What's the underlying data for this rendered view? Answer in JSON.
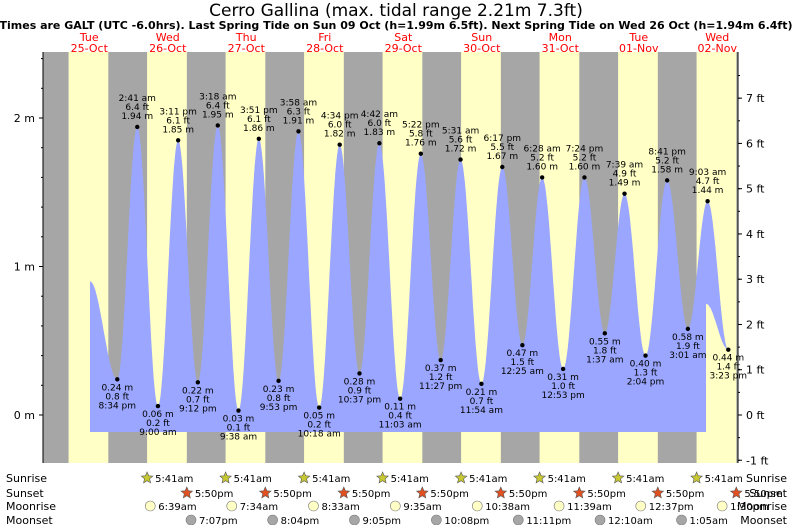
{
  "chart_data": {
    "type": "area",
    "title": "Cerro Gallina (max. tidal range 2.21m 7.3ft)",
    "subtitle": "Times are GALT (UTC -6.0hrs). Last Spring Tide on Sun 09 Oct (h=1.99m 6.5ft). Next Spring Tide on Wed 26 Oct (h=1.94m 6.4ft)",
    "days": [
      {
        "dow": "Tue",
        "date": "25-Oct"
      },
      {
        "dow": "Wed",
        "date": "26-Oct"
      },
      {
        "dow": "Thu",
        "date": "27-Oct"
      },
      {
        "dow": "Fri",
        "date": "28-Oct"
      },
      {
        "dow": "Sat",
        "date": "29-Oct"
      },
      {
        "dow": "Sun",
        "date": "30-Oct"
      },
      {
        "dow": "Mon",
        "date": "31-Oct"
      },
      {
        "dow": "Tue",
        "date": "01-Nov"
      },
      {
        "dow": "Wed",
        "date": "02-Nov"
      }
    ],
    "y_left_ticks": [
      "0 m",
      "1 m",
      "2 m"
    ],
    "y_right_ticks": [
      "-1 ft",
      "0 ft",
      "1 ft",
      "2 ft",
      "3 ft",
      "4 ft",
      "5 ft",
      "6 ft",
      "7 ft"
    ],
    "ylim_m": [
      -0.3,
      2.6
    ],
    "tides": [
      {
        "day": 0,
        "hour": 20.57,
        "m": 0.24,
        "ft": 0.8,
        "label_m": "0.24 m",
        "label_ft": "0.8 ft",
        "time": "8:34 pm",
        "type": "low"
      },
      {
        "day": 1,
        "hour": 2.68,
        "m": 1.94,
        "ft": 6.4,
        "label_m": "1.94 m",
        "label_ft": "6.4 ft",
        "time": "2:41 am",
        "type": "high"
      },
      {
        "day": 1,
        "hour": 9.0,
        "m": 0.06,
        "ft": 0.2,
        "label_m": "0.06 m",
        "label_ft": "0.2 ft",
        "time": "9:00 am",
        "type": "low"
      },
      {
        "day": 1,
        "hour": 15.18,
        "m": 1.85,
        "ft": 6.1,
        "label_m": "1.85 m",
        "label_ft": "6.1 ft",
        "time": "3:11 pm",
        "type": "high"
      },
      {
        "day": 1,
        "hour": 21.2,
        "m": 0.22,
        "ft": 0.7,
        "label_m": "0.22 m",
        "label_ft": "0.7 ft",
        "time": "9:12 pm",
        "type": "low"
      },
      {
        "day": 2,
        "hour": 3.3,
        "m": 1.95,
        "ft": 6.4,
        "label_m": "1.95 m",
        "label_ft": "6.4 ft",
        "time": "3:18 am",
        "type": "high"
      },
      {
        "day": 2,
        "hour": 9.63,
        "m": 0.03,
        "ft": 0.1,
        "label_m": "0.03 m",
        "label_ft": "0.1 ft",
        "time": "9:38 am",
        "type": "low"
      },
      {
        "day": 2,
        "hour": 15.85,
        "m": 1.86,
        "ft": 6.1,
        "label_m": "1.86 m",
        "label_ft": "6.1 ft",
        "time": "3:51 pm",
        "type": "high"
      },
      {
        "day": 2,
        "hour": 21.88,
        "m": 0.23,
        "ft": 0.8,
        "label_m": "0.23 m",
        "label_ft": "0.8 ft",
        "time": "9:53 pm",
        "type": "low"
      },
      {
        "day": 3,
        "hour": 3.97,
        "m": 1.91,
        "ft": 6.3,
        "label_m": "1.91 m",
        "label_ft": "6.3 ft",
        "time": "3:58 am",
        "type": "high"
      },
      {
        "day": 3,
        "hour": 10.3,
        "m": 0.05,
        "ft": 0.2,
        "label_m": "0.05 m",
        "label_ft": "0.2 ft",
        "time": "10:18 am",
        "type": "low"
      },
      {
        "day": 3,
        "hour": 16.57,
        "m": 1.82,
        "ft": 6.0,
        "label_m": "1.82 m",
        "label_ft": "6.0 ft",
        "time": "4:34 pm",
        "type": "high"
      },
      {
        "day": 3,
        "hour": 22.62,
        "m": 0.28,
        "ft": 0.9,
        "label_m": "0.28 m",
        "label_ft": "0.9 ft",
        "time": "10:37 pm",
        "type": "low"
      },
      {
        "day": 4,
        "hour": 4.7,
        "m": 1.83,
        "ft": 6.0,
        "label_m": "1.83 m",
        "label_ft": "6.0 ft",
        "time": "4:42 am",
        "type": "high"
      },
      {
        "day": 4,
        "hour": 11.05,
        "m": 0.11,
        "ft": 0.4,
        "label_m": "0.11 m",
        "label_ft": "0.4 ft",
        "time": "11:03 am",
        "type": "low"
      },
      {
        "day": 4,
        "hour": 17.37,
        "m": 1.76,
        "ft": 5.8,
        "label_m": "1.76 m",
        "label_ft": "5.8 ft",
        "time": "5:22 pm",
        "type": "high"
      },
      {
        "day": 4,
        "hour": 23.45,
        "m": 0.37,
        "ft": 1.2,
        "label_m": "0.37 m",
        "label_ft": "1.2 ft",
        "time": "11:27 pm",
        "type": "low"
      },
      {
        "day": 5,
        "hour": 5.52,
        "m": 1.72,
        "ft": 5.6,
        "label_m": "1.72 m",
        "label_ft": "5.6 ft",
        "time": "5:31 am",
        "type": "high"
      },
      {
        "day": 5,
        "hour": 11.9,
        "m": 0.21,
        "ft": 0.7,
        "label_m": "0.21 m",
        "label_ft": "0.7 ft",
        "time": "11:54 am",
        "type": "low"
      },
      {
        "day": 5,
        "hour": 18.28,
        "m": 1.67,
        "ft": 5.5,
        "label_m": "1.67 m",
        "label_ft": "5.5 ft",
        "time": "6:17 pm",
        "type": "high"
      },
      {
        "day": 6,
        "hour": 0.42,
        "m": 0.47,
        "ft": 1.5,
        "label_m": "0.47 m",
        "label_ft": "1.5 ft",
        "time": "12:25 am",
        "type": "low"
      },
      {
        "day": 6,
        "hour": 6.47,
        "m": 1.6,
        "ft": 5.2,
        "label_m": "1.60 m",
        "label_ft": "5.2 ft",
        "time": "6:28 am",
        "type": "high"
      },
      {
        "day": 6,
        "hour": 12.88,
        "m": 0.31,
        "ft": 1.0,
        "label_m": "0.31 m",
        "label_ft": "1.0 ft",
        "time": "12:53 pm",
        "type": "low"
      },
      {
        "day": 6,
        "hour": 19.4,
        "m": 1.6,
        "ft": 5.2,
        "label_m": "1.60 m",
        "label_ft": "5.2 ft",
        "time": "7:24 pm",
        "type": "high"
      },
      {
        "day": 7,
        "hour": 1.62,
        "m": 0.55,
        "ft": 1.8,
        "label_m": "0.55 m",
        "label_ft": "1.8 ft",
        "time": "1:37 am",
        "type": "low"
      },
      {
        "day": 7,
        "hour": 7.65,
        "m": 1.49,
        "ft": 4.9,
        "label_m": "1.49 m",
        "label_ft": "4.9 ft",
        "time": "7:39 am",
        "type": "high"
      },
      {
        "day": 7,
        "hour": 14.07,
        "m": 0.4,
        "ft": 1.3,
        "label_m": "0.40 m",
        "label_ft": "1.3 ft",
        "time": "2:04 pm",
        "type": "low"
      },
      {
        "day": 7,
        "hour": 20.68,
        "m": 1.58,
        "ft": 5.2,
        "label_m": "1.58 m",
        "label_ft": "5.2 ft",
        "time": "8:41 pm",
        "type": "high"
      },
      {
        "day": 8,
        "hour": 3.02,
        "m": 0.58,
        "ft": 1.9,
        "label_m": "0.58 m",
        "label_ft": "1.9 ft",
        "time": "3:01 am",
        "type": "low"
      },
      {
        "day": 8,
        "hour": 9.05,
        "m": 1.44,
        "ft": 4.7,
        "label_m": "1.44 m",
        "label_ft": "4.7 ft",
        "time": "9:03 am",
        "type": "high"
      },
      {
        "day": 8,
        "hour": 15.38,
        "m": 0.44,
        "ft": 1.4,
        "label_m": "0.44 m",
        "label_ft": "1.4 ft",
        "time": "3:23 pm",
        "type": "low"
      }
    ],
    "astro_rows": {
      "sunrise": {
        "label": "Sunrise",
        "events": [
          {
            "day": 1,
            "hour": 5.68,
            "time": "5:41am"
          },
          {
            "day": 2,
            "hour": 5.68,
            "time": "5:41am"
          },
          {
            "day": 3,
            "hour": 5.68,
            "time": "5:41am"
          },
          {
            "day": 4,
            "hour": 5.68,
            "time": "5:41am"
          },
          {
            "day": 5,
            "hour": 5.68,
            "time": "5:41am"
          },
          {
            "day": 6,
            "hour": 5.68,
            "time": "5:41am"
          },
          {
            "day": 7,
            "hour": 5.68,
            "time": "5:41am"
          },
          {
            "day": 8,
            "hour": 5.68,
            "time": "5:41am"
          }
        ]
      },
      "sunset": {
        "label": "Sunset",
        "events": [
          {
            "day": 1,
            "hour": 17.83,
            "time": "5:50pm"
          },
          {
            "day": 2,
            "hour": 17.83,
            "time": "5:50pm"
          },
          {
            "day": 3,
            "hour": 17.83,
            "time": "5:50pm"
          },
          {
            "day": 4,
            "hour": 17.83,
            "time": "5:50pm"
          },
          {
            "day": 5,
            "hour": 17.83,
            "time": "5:50pm"
          },
          {
            "day": 6,
            "hour": 17.83,
            "time": "5:50pm"
          },
          {
            "day": 7,
            "hour": 17.83,
            "time": "5:50pm"
          },
          {
            "day": 8,
            "hour": 17.83,
            "time": "5:50pm"
          }
        ]
      },
      "moonrise": {
        "label": "Moonrise",
        "events": [
          {
            "day": 1,
            "hour": 6.65,
            "time": "6:39am"
          },
          {
            "day": 2,
            "hour": 7.57,
            "time": "7:34am"
          },
          {
            "day": 3,
            "hour": 8.55,
            "time": "8:33am"
          },
          {
            "day": 4,
            "hour": 9.58,
            "time": "9:35am"
          },
          {
            "day": 5,
            "hour": 10.63,
            "time": "10:38am"
          },
          {
            "day": 6,
            "hour": 11.65,
            "time": "11:39am"
          },
          {
            "day": 7,
            "hour": 12.62,
            "time": "12:37pm"
          },
          {
            "day": 8,
            "hour": 13.5,
            "time": "1:30pm"
          }
        ]
      },
      "moonset": {
        "label": "Moonset",
        "events": [
          {
            "day": 1,
            "hour": 19.12,
            "time": "7:07pm"
          },
          {
            "day": 2,
            "hour": 20.07,
            "time": "8:04pm"
          },
          {
            "day": 3,
            "hour": 21.08,
            "time": "9:05pm"
          },
          {
            "day": 4,
            "hour": 22.13,
            "time": "10:08pm"
          },
          {
            "day": 5,
            "hour": 23.18,
            "time": "11:11pm"
          },
          {
            "day": 7,
            "hour": 0.17,
            "time": "12:10am"
          },
          {
            "day": 8,
            "hour": 1.08,
            "time": "1:05am"
          }
        ]
      }
    },
    "colors": {
      "night": "#a6a6a6",
      "day": "#ffffc6",
      "water": "#9aa6ff",
      "day_label": "#ff0000",
      "sunrise": "#c8c832",
      "sunset": "#e05020",
      "moonrise": "#ffffc6",
      "moonset": "#a6a6a6"
    },
    "sunrise_hour": 5.68,
    "sunset_hour": 17.83
  }
}
